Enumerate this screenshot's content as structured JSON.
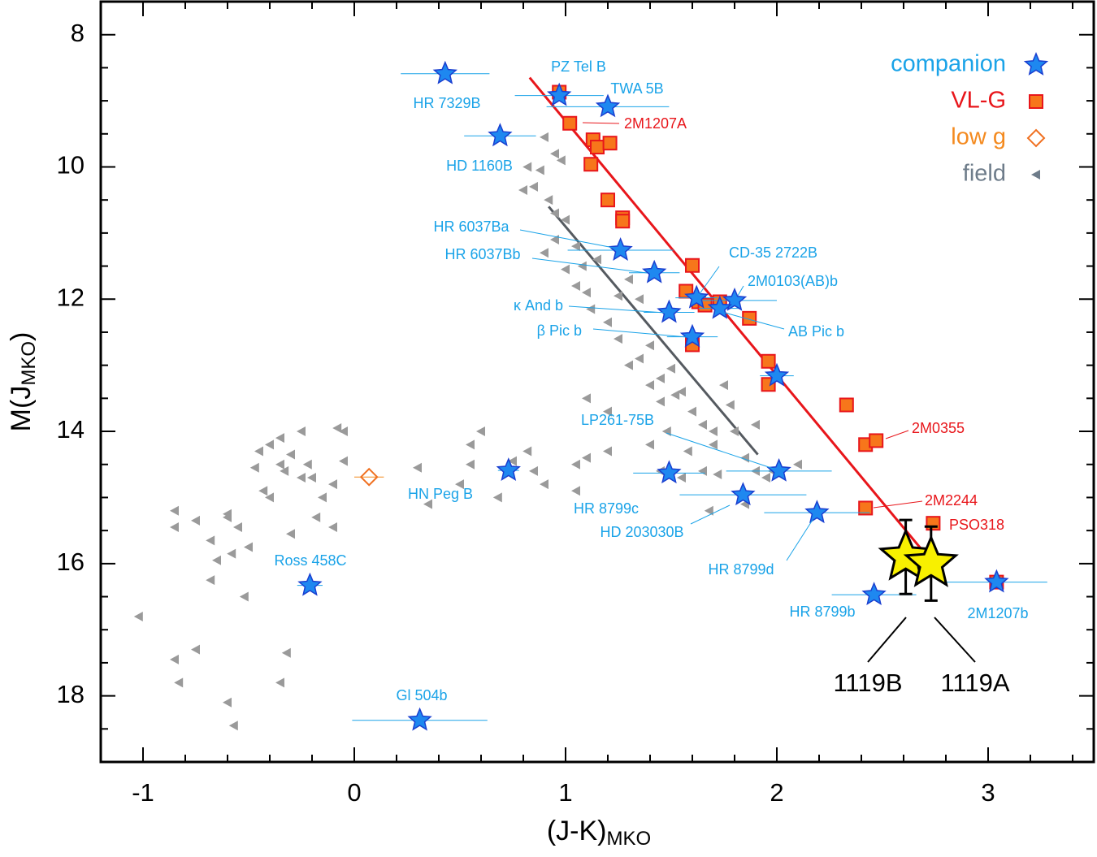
{
  "chart_data": {
    "type": "scatter",
    "x_label": {
      "text": "(J-K)",
      "sub": "MKO"
    },
    "y_label": {
      "text": "M(J",
      "sub": "MKO",
      "end": ")"
    },
    "xlim": [
      -1.2,
      3.5
    ],
    "ylim": [
      19,
      7.5
    ],
    "xticks": [
      -1,
      0,
      1,
      2,
      3
    ],
    "yticks": [
      8,
      10,
      12,
      14,
      16,
      18
    ],
    "xminor": [
      -1.2,
      -0.8,
      -0.6,
      -0.4,
      -0.2,
      0.2,
      0.4,
      0.6,
      0.8,
      1.2,
      1.4,
      1.6,
      1.8,
      2.2,
      2.4,
      2.6,
      2.8,
      3.2,
      3.4
    ],
    "yminor": [
      8.5,
      9,
      9.5,
      10.5,
      11,
      11.5,
      12.5,
      13,
      13.5,
      14.5,
      15,
      15.5,
      16.5,
      17,
      17.5,
      18.5
    ],
    "legend": "upper right",
    "series": [
      {
        "name": "field",
        "marker": "triangle-left",
        "color": "#9a9a9a",
        "label_color": "#6e7c8a",
        "x": [
          -1.02,
          -0.85,
          -0.85,
          -0.85,
          -0.83,
          -0.75,
          -0.75,
          -0.68,
          -0.68,
          -0.65,
          -0.6,
          -0.6,
          -0.58,
          -0.57,
          -0.6,
          -0.55,
          -0.52,
          -0.5,
          -0.47,
          -0.45,
          -0.43,
          -0.4,
          -0.4,
          -0.35,
          -0.35,
          -0.33,
          -0.3,
          -0.3,
          -0.32,
          -0.35,
          -0.25,
          -0.25,
          -0.22,
          -0.2,
          -0.18,
          -0.15,
          -0.1,
          -0.1,
          -0.05,
          -0.05,
          -0.08,
          0.3,
          0.35,
          0.5,
          0.55,
          0.55,
          0.6,
          0.68,
          0.75,
          0.82,
          0.85,
          0.9,
          1.05,
          1.05,
          1.1,
          1.2,
          0.82,
          0.85,
          0.88,
          0.92,
          0.95,
          0.98,
          0.9,
          0.95,
          0.8,
          0.9,
          0.95,
          1.0,
          1.0,
          1.05,
          1.08,
          1.05,
          1.1,
          1.12,
          1.15,
          1.2,
          1.25,
          1.3,
          1.35,
          1.4,
          1.45,
          1.45,
          1.5,
          1.52,
          1.55,
          1.6,
          1.65,
          1.58,
          1.7,
          1.7,
          1.75,
          1.78,
          1.8,
          1.85,
          1.9,
          1.9,
          1.95,
          1.98,
          2.1,
          1.4,
          1.35,
          1.25,
          1.3,
          1.48,
          1.45,
          1.55,
          1.65,
          1.72,
          1.85,
          1.68,
          1.2,
          1.1,
          1.4
        ],
        "y": [
          16.8,
          15.2,
          15.45,
          17.45,
          17.8,
          15.35,
          17.3,
          15.65,
          16.25,
          15.95,
          15.25,
          15.3,
          15.85,
          18.45,
          18.1,
          15.45,
          16.5,
          15.75,
          14.55,
          14.3,
          14.9,
          14.2,
          15.0,
          14.1,
          14.5,
          14.6,
          14.35,
          15.55,
          17.35,
          17.8,
          14.0,
          14.7,
          14.5,
          14.7,
          15.3,
          15.0,
          14.8,
          15.45,
          14.45,
          14.0,
          13.95,
          14.55,
          15.1,
          14.8,
          14.5,
          14.2,
          14.0,
          15.0,
          14.45,
          14.3,
          14.6,
          14.8,
          14.5,
          14.9,
          14.4,
          14.3,
          10.0,
          10.3,
          10.05,
          10.5,
          10.7,
          9.9,
          9.55,
          9.8,
          10.35,
          11.3,
          11.1,
          10.8,
          11.55,
          11.2,
          11.5,
          11.8,
          11.9,
          12.15,
          11.4,
          12.35,
          12.6,
          13.0,
          12.9,
          13.3,
          13.2,
          13.55,
          13.05,
          13.45,
          13.4,
          13.7,
          13.9,
          14.3,
          14.0,
          14.2,
          13.3,
          13.6,
          14.0,
          14.4,
          13.9,
          14.6,
          14.7,
          14.6,
          14.5,
          12.7,
          12.0,
          11.95,
          11.7,
          14.0,
          14.6,
          14.7,
          14.6,
          14.65,
          15.1,
          15.2,
          13.7,
          13.5,
          14.2
        ]
      },
      {
        "name": "low g",
        "marker": "diamond",
        "color": "#f07020",
        "label_color": "#f48a1f",
        "x": [
          0.07
        ],
        "y": [
          14.69
        ],
        "xerr": [
          0.07
        ]
      },
      {
        "name": "VL-G",
        "marker": "square",
        "color": "#f7761b",
        "edgecolor": "#e8161b",
        "label_color": "#e8161b",
        "x": [
          0.97,
          1.02,
          1.13,
          1.15,
          1.21,
          1.12,
          1.2,
          1.27,
          1.27,
          1.6,
          1.57,
          1.63,
          1.66,
          1.73,
          1.87,
          1.96,
          1.96,
          1.6,
          2.33,
          2.42,
          2.47,
          2.42,
          2.74,
          3.04
        ],
        "y": [
          8.87,
          9.34,
          9.59,
          9.7,
          9.64,
          9.96,
          10.5,
          10.77,
          10.82,
          11.49,
          11.88,
          12.04,
          12.09,
          12.04,
          12.29,
          12.94,
          13.29,
          12.69,
          13.6,
          14.2,
          14.14,
          15.16,
          15.39,
          16.28
        ],
        "labels": [
          null,
          "2M1207A",
          null,
          null,
          null,
          null,
          null,
          null,
          null,
          null,
          null,
          null,
          null,
          null,
          null,
          null,
          null,
          null,
          null,
          null,
          "2M0355",
          "2M2244",
          "PSO318",
          null
        ]
      },
      {
        "name": "companion",
        "marker": "star",
        "color": "#1e88f0",
        "edgecolor": "#1a3fd0",
        "label_color": "#1aa3e8",
        "x": [
          0.43,
          0.97,
          1.2,
          0.69,
          1.26,
          1.42,
          1.62,
          1.8,
          1.49,
          1.73,
          1.6,
          2.0,
          2.01,
          1.49,
          1.84,
          2.19,
          0.73,
          -0.21,
          2.46,
          3.04,
          0.31
        ],
        "y": [
          8.59,
          8.92,
          9.09,
          9.53,
          11.26,
          11.6,
          11.98,
          12.02,
          12.2,
          12.14,
          12.57,
          13.16,
          14.6,
          14.63,
          14.96,
          15.23,
          14.59,
          16.33,
          16.47,
          16.28,
          18.37
        ],
        "xerr": [
          0.21,
          0.21,
          0.29,
          0.17,
          0.25,
          0.12,
          0.1,
          0.2,
          0.12,
          0.1,
          0.12,
          0.08,
          0.25,
          0.17,
          0.3,
          0.25,
          0.05,
          0.06,
          0.2,
          0.24,
          0.32
        ],
        "labels": [
          "HR 7329B",
          "PZ Tel B",
          "TWA 5B",
          "HD 1160B",
          "HR 6037Ba",
          "HR 6037Bb",
          "CD-35 2722B",
          "2M0103(AB)b",
          "κ And b",
          "AB Pic b",
          "β Pic b",
          null,
          "LP261-75B",
          "HR 8799c",
          "HD 203030B",
          "HR 8799d",
          "HN Peg B",
          "Ross 458C",
          "HR 8799b",
          "2M1207b",
          "Gl 504b"
        ]
      }
    ],
    "lines": [
      {
        "color": "#e8161b",
        "x": [
          0.83,
          2.72
        ],
        "y": [
          8.65,
          15.92
        ]
      },
      {
        "color": "#555a60",
        "x": [
          0.92,
          1.91
        ],
        "y": [
          10.6,
          14.35
        ]
      }
    ],
    "highlights": [
      {
        "label": "1119B",
        "x": 2.61,
        "y": 15.9,
        "yerr": 0.56,
        "color": "#f8f000"
      },
      {
        "label": "1119A",
        "x": 2.73,
        "y": 16.0,
        "yerr": 0.56,
        "color": "#f8f000"
      }
    ]
  }
}
